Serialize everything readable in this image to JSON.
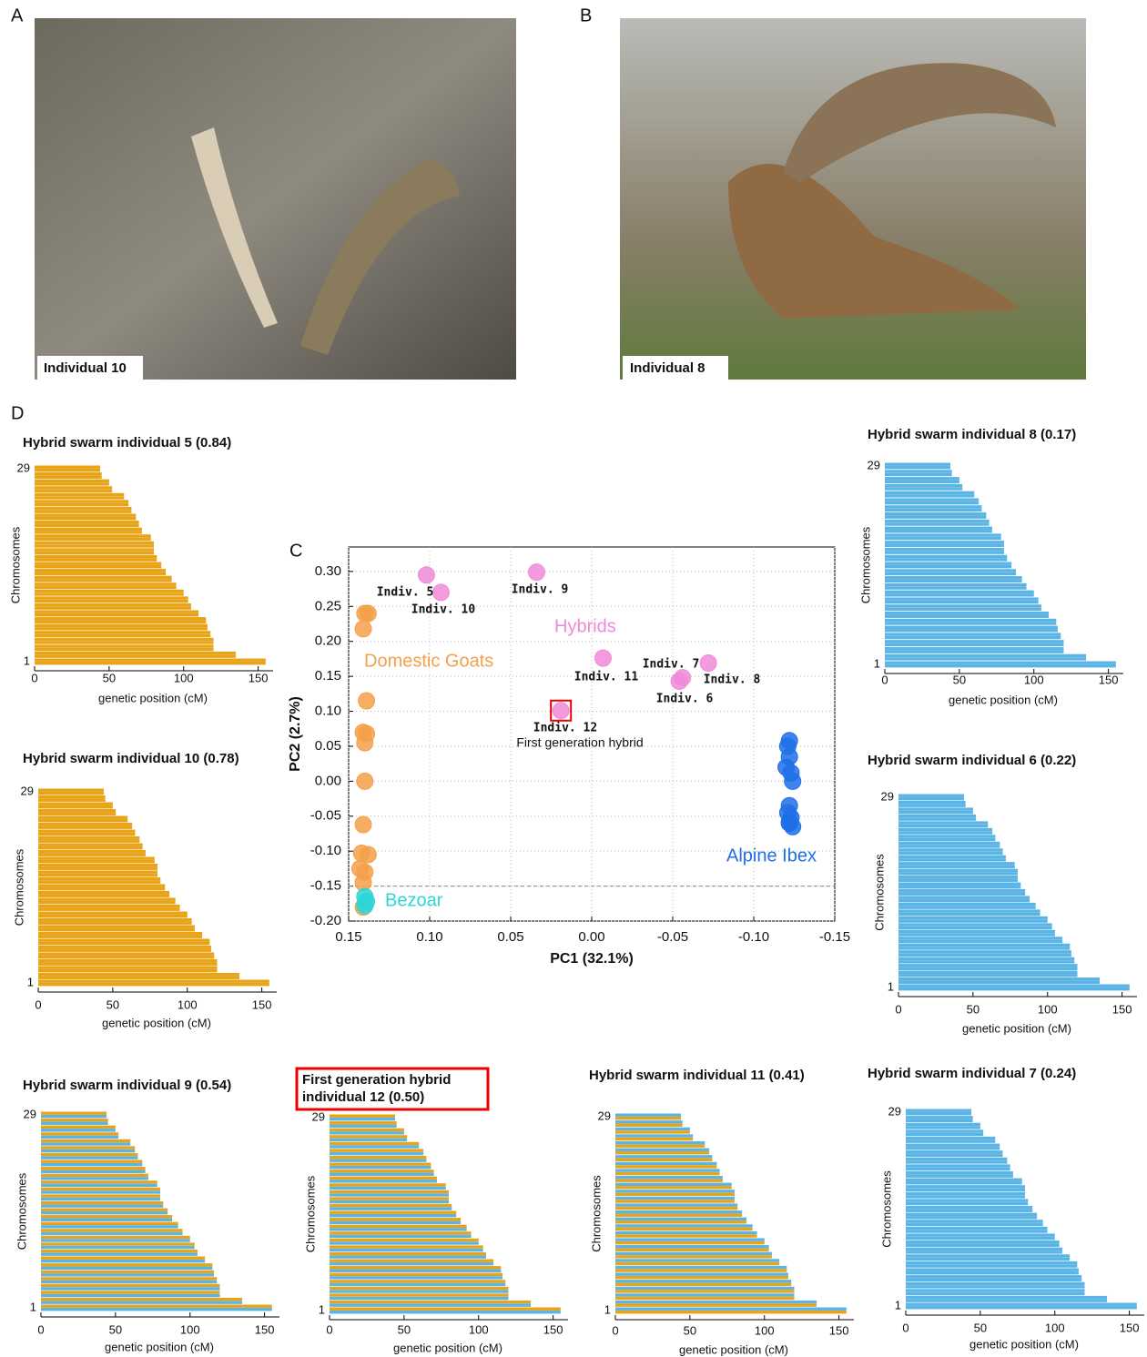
{
  "panel_letters": [
    "A",
    "B",
    "C",
    "D"
  ],
  "photos": [
    {
      "label": "Individual 10"
    },
    {
      "label": "Individual 8"
    }
  ],
  "chart_data": [
    {
      "type": "scatter",
      "xlabel": "PC1 (32.1%)",
      "ylabel": "PC2 (2.7%)",
      "xlim": [
        0.15,
        -0.15
      ],
      "ylim": [
        -0.2,
        0.335
      ],
      "xticks": [
        {
          "value": 0.15,
          "label": "0.15"
        },
        {
          "value": 0.1,
          "label": "0.10"
        },
        {
          "value": 0.05,
          "label": "0.05"
        },
        {
          "value": 0,
          "label": "0.00"
        },
        {
          "value": -0.05,
          "label": "-0.05"
        },
        {
          "value": -0.1,
          "label": "-0.10"
        },
        {
          "value": -0.15,
          "label": "-0.15"
        }
      ],
      "yticks": [
        {
          "value": -0.2,
          "label": "-0.20"
        },
        {
          "value": -0.15,
          "label": "-0.15"
        },
        {
          "value": -0.1,
          "label": "-0.10"
        },
        {
          "value": -0.05,
          "label": "-0.05"
        },
        {
          "value": 0,
          "label": "0.00"
        },
        {
          "value": 0.05,
          "label": "0.05"
        },
        {
          "value": 0.1,
          "label": "0.10"
        },
        {
          "value": 0.15,
          "label": "0.15"
        },
        {
          "value": 0.2,
          "label": "0.20"
        },
        {
          "value": 0.25,
          "label": "0.25"
        },
        {
          "value": 0.3,
          "label": "0.30"
        }
      ],
      "grid": true,
      "reference_line": -0.15,
      "series": [
        {
          "name": "Domestic Goats",
          "color": "#f5a04a",
          "x": [
            0.14,
            0.138,
            0.141,
            0.139,
            0.141,
            0.139,
            0.14,
            0.14,
            0.141,
            0.142,
            0.138,
            0.143,
            0.14,
            0.141,
            0.141
          ],
          "values": [
            0.24,
            0.24,
            0.218,
            0.115,
            0.07,
            0.068,
            0.055,
            0,
            -0.062,
            -0.103,
            -0.105,
            -0.125,
            -0.13,
            -0.145,
            -0.18
          ]
        },
        {
          "name": "Bezoar",
          "color": "#2cd6d6",
          "x": [
            0.14,
            0.139,
            0.14
          ],
          "values": [
            -0.165,
            -0.172,
            -0.178
          ]
        },
        {
          "name": "Alpine Ibex",
          "color": "#1f6fe8",
          "x": [
            -0.122,
            -0.121,
            -0.122,
            -0.12,
            -0.123,
            -0.124,
            -0.122,
            -0.121,
            -0.123,
            -0.122,
            -0.124,
            -0.122
          ],
          "values": [
            0.058,
            0.05,
            0.035,
            0.02,
            0.012,
            0,
            -0.035,
            -0.045,
            -0.052,
            -0.058,
            -0.065,
            -0.06
          ]
        },
        {
          "name": "Hybrids",
          "color": "#f08ad8",
          "x": [
            0.102,
            0.093,
            0.034,
            -0.007,
            -0.056,
            -0.054,
            -0.072,
            0.019
          ],
          "values": [
            0.295,
            0.27,
            0.299,
            0.176,
            0.148,
            0.143,
            0.169,
            0.101
          ],
          "labels": [
            "Indiv. 5",
            "Indiv. 10",
            "Indiv. 9",
            "Indiv. 11",
            "Indiv. 7",
            "Indiv. 6",
            "Indiv. 8",
            "Indiv. 12"
          ]
        }
      ],
      "annotations": [
        "First generation hybrid"
      ]
    },
    {
      "type": "chromosome",
      "title": [
        "Hybrid swarm individual 5 (0.84)"
      ],
      "strand_colors": [
        "#e8a317",
        "#e8a317"
      ],
      "xlim": [
        0,
        160
      ],
      "xticks": [
        0,
        50,
        100,
        150
      ],
      "xlabel": "genetic position (cM)",
      "ylabel": "Chromosomes",
      "categories": [
        "1",
        null,
        null,
        null,
        null,
        null,
        null,
        null,
        null,
        null,
        null,
        null,
        null,
        null,
        null,
        null,
        null,
        null,
        null,
        null,
        null,
        null,
        null,
        null,
        null,
        null,
        null,
        null,
        "29"
      ],
      "values": [
        155,
        135,
        120,
        120,
        118,
        116,
        115,
        110,
        105,
        103,
        100,
        95,
        92,
        88,
        85,
        82,
        80,
        80,
        78,
        72,
        70,
        68,
        65,
        63,
        60,
        52,
        50,
        45,
        44
      ]
    },
    {
      "type": "chromosome",
      "title": [
        "Hybrid swarm individual 8 (0.17)"
      ],
      "strand_colors": [
        "#5ab4e5",
        "#5ab4e5"
      ],
      "xlim": [
        0,
        160
      ],
      "xticks": [
        0,
        50,
        100,
        150
      ],
      "xlabel": "genetic position (cM)",
      "ylabel": "Chromosomes",
      "categories": [
        "1",
        null,
        null,
        null,
        null,
        null,
        null,
        null,
        null,
        null,
        null,
        null,
        null,
        null,
        null,
        null,
        null,
        null,
        null,
        null,
        null,
        null,
        null,
        null,
        null,
        null,
        null,
        null,
        "29"
      ],
      "values": [
        155,
        135,
        120,
        120,
        118,
        116,
        115,
        110,
        105,
        103,
        100,
        95,
        92,
        88,
        85,
        82,
        80,
        80,
        78,
        72,
        70,
        68,
        65,
        63,
        60,
        52,
        50,
        45,
        44
      ]
    },
    {
      "type": "chromosome",
      "title": [
        "Hybrid swarm individual 10 (0.78)"
      ],
      "strand_colors": [
        "#e8a317",
        "#e8a317"
      ],
      "xlim": [
        0,
        160
      ],
      "xticks": [
        0,
        50,
        100,
        150
      ],
      "xlabel": "genetic position (cM)",
      "ylabel": "Chromosomes",
      "categories": [
        "1",
        null,
        null,
        null,
        null,
        null,
        null,
        null,
        null,
        null,
        null,
        null,
        null,
        null,
        null,
        null,
        null,
        null,
        null,
        null,
        null,
        null,
        null,
        null,
        null,
        null,
        null,
        null,
        "29"
      ],
      "values": [
        155,
        135,
        120,
        120,
        118,
        116,
        115,
        110,
        105,
        103,
        100,
        95,
        92,
        88,
        85,
        82,
        80,
        80,
        78,
        72,
        70,
        68,
        65,
        63,
        60,
        52,
        50,
        45,
        44
      ]
    },
    {
      "type": "chromosome",
      "title": [
        "Hybrid swarm individual 6 (0.22)"
      ],
      "strand_colors": [
        "#5ab4e5",
        "#5ab4e5"
      ],
      "xlim": [
        0,
        160
      ],
      "xticks": [
        0,
        50,
        100,
        150
      ],
      "xlabel": "genetic position (cM)",
      "ylabel": "Chromosomes",
      "categories": [
        "1",
        null,
        null,
        null,
        null,
        null,
        null,
        null,
        null,
        null,
        null,
        null,
        null,
        null,
        null,
        null,
        null,
        null,
        null,
        null,
        null,
        null,
        null,
        null,
        null,
        null,
        null,
        null,
        "29"
      ],
      "values": [
        155,
        135,
        120,
        120,
        118,
        116,
        115,
        110,
        105,
        103,
        100,
        95,
        92,
        88,
        85,
        82,
        80,
        80,
        78,
        72,
        70,
        68,
        65,
        63,
        60,
        52,
        50,
        45,
        44
      ]
    },
    {
      "type": "chromosome",
      "title": [
        "Hybrid swarm individual 9 (0.54)"
      ],
      "strand_colors": [
        "#e8a317",
        "#5ab4e5"
      ],
      "xlim": [
        0,
        160
      ],
      "xticks": [
        0,
        50,
        100,
        150
      ],
      "xlabel": "genetic position (cM)",
      "ylabel": "Chromosomes",
      "categories": [
        "1",
        null,
        null,
        null,
        null,
        null,
        null,
        null,
        null,
        null,
        null,
        null,
        null,
        null,
        null,
        null,
        null,
        null,
        null,
        null,
        null,
        null,
        null,
        null,
        null,
        null,
        null,
        null,
        "29"
      ],
      "values": [
        155,
        135,
        120,
        120,
        118,
        116,
        115,
        110,
        105,
        103,
        100,
        95,
        92,
        88,
        85,
        82,
        80,
        80,
        78,
        72,
        70,
        68,
        65,
        63,
        60,
        52,
        50,
        45,
        44
      ]
    },
    {
      "type": "chromosome",
      "title": [
        "First generation hybrid",
        "individual 12 (0.50)"
      ],
      "highlight": true,
      "strand_colors": [
        "#e8a317",
        "#5ab4e5"
      ],
      "xlim": [
        0,
        160
      ],
      "xticks": [
        0,
        50,
        100,
        150
      ],
      "xlabel": "genetic position (cM)",
      "ylabel": "Chromosomes",
      "categories": [
        "1",
        null,
        null,
        null,
        null,
        null,
        null,
        null,
        null,
        null,
        null,
        null,
        null,
        null,
        null,
        null,
        null,
        null,
        null,
        null,
        null,
        null,
        null,
        null,
        null,
        null,
        null,
        null,
        "29"
      ],
      "values": [
        155,
        135,
        120,
        120,
        118,
        116,
        115,
        110,
        105,
        103,
        100,
        95,
        92,
        88,
        85,
        82,
        80,
        80,
        78,
        72,
        70,
        68,
        65,
        63,
        60,
        52,
        50,
        45,
        44
      ]
    },
    {
      "type": "chromosome",
      "title": [
        "Hybrid swarm individual 11 (0.41)"
      ],
      "strand_colors": [
        "#5ab4e5",
        "#e8a317"
      ],
      "xlim": [
        0,
        160
      ],
      "xticks": [
        0,
        50,
        100,
        150
      ],
      "xlabel": "genetic position (cM)",
      "ylabel": "Chromosomes",
      "categories": [
        "1",
        null,
        null,
        null,
        null,
        null,
        null,
        null,
        null,
        null,
        null,
        null,
        null,
        null,
        null,
        null,
        null,
        null,
        null,
        null,
        null,
        null,
        null,
        null,
        null,
        null,
        null,
        null,
        "29"
      ],
      "values": [
        155,
        135,
        120,
        120,
        118,
        116,
        115,
        110,
        105,
        103,
        100,
        95,
        92,
        88,
        85,
        82,
        80,
        80,
        78,
        72,
        70,
        68,
        65,
        63,
        60,
        52,
        50,
        45,
        44
      ]
    },
    {
      "type": "chromosome",
      "title": [
        "Hybrid swarm individual 7 (0.24)"
      ],
      "strand_colors": [
        "#5ab4e5",
        "#5ab4e5"
      ],
      "xlim": [
        0,
        160
      ],
      "xticks": [
        0,
        50,
        100,
        150
      ],
      "xlabel": "genetic position (cM)",
      "ylabel": "Chromosomes",
      "categories": [
        "1",
        null,
        null,
        null,
        null,
        null,
        null,
        null,
        null,
        null,
        null,
        null,
        null,
        null,
        null,
        null,
        null,
        null,
        null,
        null,
        null,
        null,
        null,
        null,
        null,
        null,
        null,
        null,
        "29"
      ],
      "values": [
        155,
        135,
        120,
        120,
        118,
        116,
        115,
        110,
        105,
        103,
        100,
        95,
        92,
        88,
        85,
        82,
        80,
        80,
        78,
        72,
        70,
        68,
        65,
        63,
        60,
        52,
        50,
        45,
        44
      ]
    }
  ]
}
